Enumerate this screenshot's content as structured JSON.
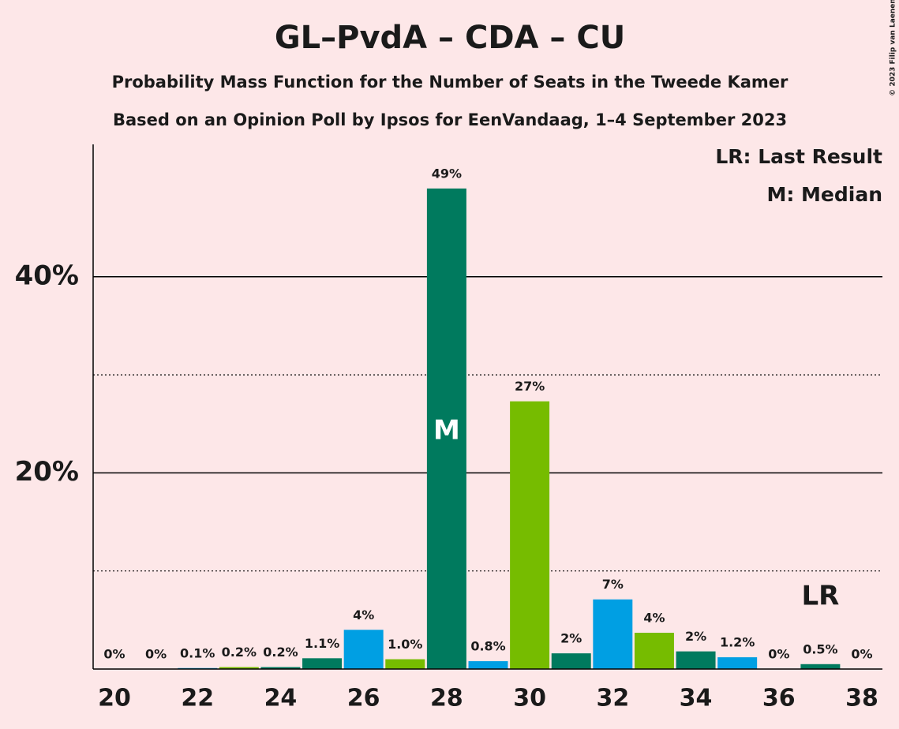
{
  "chart_data": {
    "type": "bar",
    "title": "GL–PvdA – CDA – CU",
    "subtitle": "Probability Mass Function for the Number of Seats in the Tweede Kamer",
    "subtitle2": "Based on an Opinion Poll by Ipsos for EenVandaag, 1–4 September 2023",
    "copyright": "© 2023 Filip van Laenen",
    "legend": [
      "LR: Last Result",
      "M: Median"
    ],
    "legend_position": "upper right",
    "x": [
      20,
      21,
      22,
      23,
      24,
      25,
      26,
      27,
      28,
      29,
      30,
      31,
      32,
      33,
      34,
      35,
      36,
      37,
      38
    ],
    "values": [
      0,
      0,
      0.1,
      0.2,
      0.2,
      1.1,
      4.0,
      1.0,
      49.0,
      0.8,
      27.3,
      1.6,
      7.1,
      3.7,
      1.8,
      1.2,
      0,
      0.5,
      0
    ],
    "value_labels": [
      "0%",
      "0%",
      "0.1%",
      "0.2%",
      "0.2%",
      "1.1%",
      "4%",
      "1.0%",
      "49%",
      "0.8%",
      "27%",
      "2%",
      "7%",
      "4%",
      "2%",
      "1.2%",
      "0%",
      "0.5%",
      "0%"
    ],
    "colors": [
      "#76bc00",
      "#007a5e",
      "#009fe3",
      "#76bc00",
      "#007a5e",
      "#007a5e",
      "#009fe3",
      "#76bc00",
      "#007a5e",
      "#009fe3",
      "#76bc00",
      "#007a5e",
      "#009fe3",
      "#76bc00",
      "#007a5e",
      "#009fe3",
      "#76bc00",
      "#007a5e",
      "#009fe3"
    ],
    "annotations": [
      {
        "x": 28,
        "text": "M",
        "position": "inside"
      },
      {
        "x": 37,
        "text": "LR",
        "position": "above"
      }
    ],
    "xlim": [
      19.5,
      38.5
    ],
    "xticks": [
      20,
      22,
      24,
      26,
      28,
      30,
      32,
      34,
      36,
      38
    ],
    "ylim": [
      0,
      53.5
    ],
    "yticks": [
      {
        "value": 20,
        "label": "20%"
      },
      {
        "value": 40,
        "label": "40%"
      }
    ],
    "minor_yticks": [
      10,
      30
    ],
    "grid": true
  }
}
